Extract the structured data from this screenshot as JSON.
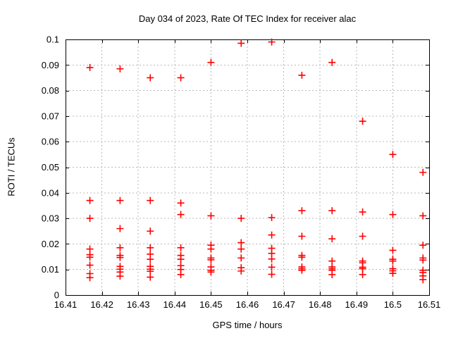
{
  "colors": {
    "background": "#ffffff",
    "axis": "#000000",
    "grid": "#b8b8b8",
    "marker": "#ff0000",
    "text": "#000000"
  },
  "chart_data": {
    "type": "scatter",
    "title": "Day 034 of 2023, Rate Of TEC Index for receiver alac",
    "xlabel": "GPS time / hours",
    "ylabel": "ROTI / TECUs",
    "xlim": [
      16.41,
      16.51
    ],
    "ylim": [
      0,
      0.1
    ],
    "grid": "dashed",
    "legend": "none",
    "marker": {
      "shape": "plus",
      "color": "#ff0000",
      "size": 10
    },
    "x_ticks": [
      {
        "v": 16.41,
        "label": "16.41"
      },
      {
        "v": 16.42,
        "label": "16.42"
      },
      {
        "v": 16.43,
        "label": "16.43"
      },
      {
        "v": 16.44,
        "label": "16.44"
      },
      {
        "v": 16.45,
        "label": "16.45"
      },
      {
        "v": 16.46,
        "label": "16.46"
      },
      {
        "v": 16.47,
        "label": "16.47"
      },
      {
        "v": 16.48,
        "label": "16.48"
      },
      {
        "v": 16.49,
        "label": "16.49"
      },
      {
        "v": 16.5,
        "label": "16.5"
      },
      {
        "v": 16.51,
        "label": "16.51"
      }
    ],
    "y_ticks": [
      {
        "v": 0,
        "label": "0"
      },
      {
        "v": 0.01,
        "label": "0.01"
      },
      {
        "v": 0.02,
        "label": "0.02"
      },
      {
        "v": 0.03,
        "label": "0.03"
      },
      {
        "v": 0.04,
        "label": "0.04"
      },
      {
        "v": 0.05,
        "label": "0.05"
      },
      {
        "v": 0.06,
        "label": "0.06"
      },
      {
        "v": 0.07,
        "label": "0.07"
      },
      {
        "v": 0.08,
        "label": "0.08"
      },
      {
        "v": 0.09,
        "label": "0.09"
      },
      {
        "v": 0.1,
        "label": "0.1"
      }
    ],
    "series": [
      {
        "name": "ROTI",
        "points": [
          [
            16.4167,
            0.089
          ],
          [
            16.4167,
            0.037
          ],
          [
            16.4167,
            0.03
          ],
          [
            16.4167,
            0.018
          ],
          [
            16.4167,
            0.0158
          ],
          [
            16.4167,
            0.0148
          ],
          [
            16.4167,
            0.0117
          ],
          [
            16.4167,
            0.0084
          ],
          [
            16.4167,
            0.0068
          ],
          [
            16.425,
            0.0885
          ],
          [
            16.425,
            0.037
          ],
          [
            16.425,
            0.026
          ],
          [
            16.425,
            0.0185
          ],
          [
            16.425,
            0.0155
          ],
          [
            16.425,
            0.0147
          ],
          [
            16.425,
            0.0112
          ],
          [
            16.425,
            0.0101
          ],
          [
            16.425,
            0.009
          ],
          [
            16.425,
            0.0074
          ],
          [
            16.4333,
            0.085
          ],
          [
            16.4333,
            0.037
          ],
          [
            16.4333,
            0.025
          ],
          [
            16.4333,
            0.0185
          ],
          [
            16.4333,
            0.016
          ],
          [
            16.4333,
            0.014
          ],
          [
            16.4333,
            0.0112
          ],
          [
            16.4333,
            0.0101
          ],
          [
            16.4333,
            0.0093
          ],
          [
            16.4333,
            0.007
          ],
          [
            16.4417,
            0.085
          ],
          [
            16.4417,
            0.036
          ],
          [
            16.4417,
            0.0315
          ],
          [
            16.4417,
            0.0185
          ],
          [
            16.4417,
            0.0155
          ],
          [
            16.4417,
            0.014
          ],
          [
            16.4417,
            0.0115
          ],
          [
            16.4417,
            0.01
          ],
          [
            16.4417,
            0.008
          ],
          [
            16.45,
            0.091
          ],
          [
            16.45,
            0.031
          ],
          [
            16.45,
            0.0195
          ],
          [
            16.45,
            0.018
          ],
          [
            16.45,
            0.0145
          ],
          [
            16.45,
            0.0138
          ],
          [
            16.45,
            0.011
          ],
          [
            16.45,
            0.0097
          ],
          [
            16.45,
            0.009
          ],
          [
            16.4583,
            0.0985
          ],
          [
            16.4583,
            0.03
          ],
          [
            16.4583,
            0.0205
          ],
          [
            16.4583,
            0.018
          ],
          [
            16.4583,
            0.0145
          ],
          [
            16.4583,
            0.0107
          ],
          [
            16.4583,
            0.0094
          ],
          [
            16.4667,
            0.099
          ],
          [
            16.4667,
            0.0303
          ],
          [
            16.4667,
            0.0235
          ],
          [
            16.4667,
            0.0183
          ],
          [
            16.4667,
            0.0163
          ],
          [
            16.4667,
            0.0141
          ],
          [
            16.4667,
            0.0109
          ],
          [
            16.4667,
            0.0081
          ],
          [
            16.475,
            0.086
          ],
          [
            16.475,
            0.033
          ],
          [
            16.475,
            0.023
          ],
          [
            16.475,
            0.0155
          ],
          [
            16.475,
            0.0148
          ],
          [
            16.475,
            0.011
          ],
          [
            16.475,
            0.0103
          ],
          [
            16.475,
            0.0097
          ],
          [
            16.4833,
            0.091
          ],
          [
            16.4833,
            0.033
          ],
          [
            16.4833,
            0.022
          ],
          [
            16.4833,
            0.0133
          ],
          [
            16.4833,
            0.011
          ],
          [
            16.4833,
            0.0103
          ],
          [
            16.4833,
            0.0097
          ],
          [
            16.4833,
            0.008
          ],
          [
            16.4917,
            0.068
          ],
          [
            16.4917,
            0.0325
          ],
          [
            16.4917,
            0.023
          ],
          [
            16.4917,
            0.0133
          ],
          [
            16.4917,
            0.0126
          ],
          [
            16.4917,
            0.0109
          ],
          [
            16.4917,
            0.0103
          ],
          [
            16.4917,
            0.008
          ],
          [
            16.5,
            0.055
          ],
          [
            16.5,
            0.0315
          ],
          [
            16.5,
            0.0175
          ],
          [
            16.5,
            0.014
          ],
          [
            16.5,
            0.0133
          ],
          [
            16.5,
            0.0103
          ],
          [
            16.5,
            0.0095
          ],
          [
            16.5,
            0.0085
          ],
          [
            16.5083,
            0.048
          ],
          [
            16.5083,
            0.031
          ],
          [
            16.5083,
            0.0195
          ],
          [
            16.5083,
            0.0145
          ],
          [
            16.5083,
            0.0137
          ],
          [
            16.5083,
            0.0097
          ],
          [
            16.5083,
            0.0088
          ],
          [
            16.5083,
            0.0075
          ],
          [
            16.5083,
            0.006
          ]
        ]
      }
    ]
  }
}
